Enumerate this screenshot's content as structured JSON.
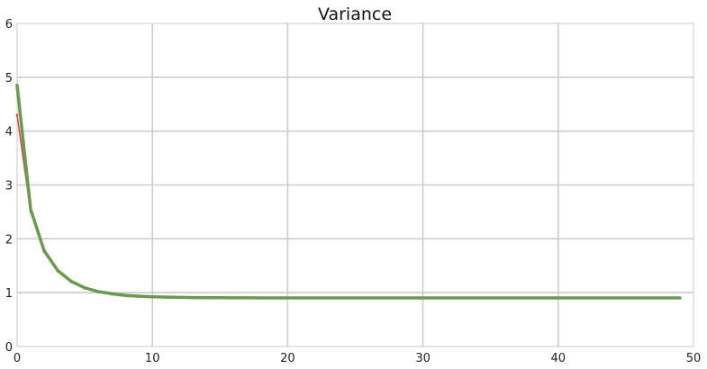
{
  "chart_data": {
    "type": "line",
    "title": "Variance",
    "xlabel": "",
    "ylabel": "",
    "xlim": [
      0,
      50
    ],
    "ylim": [
      0,
      6
    ],
    "xticks": [
      0,
      10,
      20,
      30,
      40,
      50
    ],
    "yticks": [
      0,
      1,
      2,
      3,
      4,
      5,
      6
    ],
    "grid": true,
    "series": [
      {
        "color": "#6a9950",
        "x": [
          0,
          1,
          2,
          3,
          4,
          5,
          6,
          7,
          8,
          9,
          10,
          11,
          12,
          13,
          14,
          15,
          16,
          17,
          18,
          19,
          20,
          21,
          22,
          23,
          24,
          25,
          26,
          27,
          28,
          29,
          30,
          31,
          32,
          33,
          34,
          35,
          36,
          37,
          38,
          39,
          40,
          41,
          42,
          43,
          44,
          45,
          46,
          47,
          48,
          49
        ],
        "y": [
          4.85,
          2.55,
          1.78,
          1.41,
          1.21,
          1.09,
          1.02,
          0.98,
          0.95,
          0.935,
          0.925,
          0.918,
          0.913,
          0.91,
          0.908,
          0.906,
          0.905,
          0.904,
          0.903,
          0.903,
          0.902,
          0.902,
          0.902,
          0.902,
          0.902,
          0.902,
          0.902,
          0.902,
          0.902,
          0.902,
          0.902,
          0.902,
          0.902,
          0.902,
          0.902,
          0.902,
          0.902,
          0.902,
          0.902,
          0.902,
          0.902,
          0.902,
          0.902,
          0.902,
          0.902,
          0.902,
          0.902,
          0.902,
          0.902,
          0.902
        ]
      },
      {
        "color": "#d94a3a",
        "x": [
          0,
          1,
          2,
          3,
          4,
          5,
          6,
          7,
          8,
          9,
          10,
          11,
          12,
          13,
          14,
          15,
          16,
          17,
          18,
          19,
          20,
          21,
          22,
          23,
          24,
          25,
          26,
          27,
          28,
          29,
          30,
          31,
          32,
          33,
          34,
          35,
          36,
          37,
          38,
          39,
          40,
          41,
          42,
          43,
          44,
          45,
          46,
          47,
          48,
          49
        ],
        "y": [
          4.3,
          2.5,
          1.76,
          1.4,
          1.2,
          1.08,
          1.01,
          0.97,
          0.945,
          0.93,
          0.92,
          0.915,
          0.91,
          0.905,
          0.903,
          0.9,
          0.9,
          0.9,
          0.9,
          0.9,
          0.9,
          0.9,
          0.9,
          0.9,
          0.9,
          0.9,
          0.9,
          0.9,
          0.9,
          0.9,
          0.9,
          0.9,
          0.9,
          0.9,
          0.9,
          0.9,
          0.9,
          0.9,
          0.9,
          0.9,
          0.9,
          0.9,
          0.9,
          0.9,
          0.9,
          0.9,
          0.9,
          0.9,
          0.9,
          0.9
        ]
      }
    ]
  }
}
